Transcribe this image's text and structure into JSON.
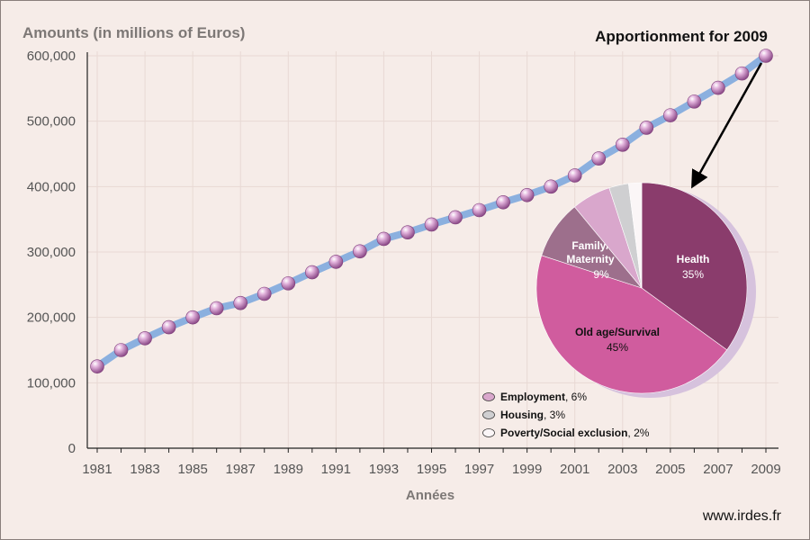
{
  "chart_data": [
    {
      "type": "line",
      "title": "",
      "ylabel": "Amounts (in millions of Euros)",
      "xlabel": "Années",
      "ylim": [
        0,
        600000
      ],
      "yticks": [
        0,
        100000,
        200000,
        300000,
        400000,
        500000,
        600000
      ],
      "ytick_labels": [
        "0",
        "100,000",
        "200,000",
        "300,000",
        "400,000",
        "500,000",
        "600,000"
      ],
      "xticks": [
        "1981",
        "1983",
        "1985",
        "1987",
        "1989",
        "1991",
        "1993",
        "1995",
        "1997",
        "1999",
        "2001",
        "2003",
        "2005",
        "2007",
        "2009"
      ],
      "x": [
        1981,
        1982,
        1983,
        1984,
        1985,
        1986,
        1987,
        1988,
        1989,
        1990,
        1991,
        1992,
        1993,
        1994,
        1995,
        1996,
        1997,
        1998,
        1999,
        2000,
        2001,
        2002,
        2003,
        2004,
        2005,
        2006,
        2007,
        2008,
        2009
      ],
      "series": [
        {
          "values": [
            125000,
            150000,
            168000,
            185000,
            200000,
            214000,
            222000,
            236000,
            252000,
            269000,
            285000,
            301000,
            320000,
            330000,
            342000,
            353000,
            364000,
            376000,
            387000,
            400000,
            417000,
            443000,
            464000,
            490000,
            509000,
            530000,
            551000,
            573000,
            600000
          ]
        }
      ],
      "grid": true,
      "line_color": "#8bb0df",
      "marker_color": "#b877b6"
    },
    {
      "type": "pie",
      "title": "Apportionment for 2009",
      "slices": [
        {
          "name": "Health",
          "value": 35,
          "label": "35%",
          "color": "#8a3c6c"
        },
        {
          "name": "Old age/Survival",
          "value": 45,
          "label": "45%",
          "color": "#d05c9e"
        },
        {
          "name": "Family/\nMaternity",
          "value": 9,
          "label": "9%",
          "color": "#9d6f8c"
        },
        {
          "name": "Employment",
          "value": 6,
          "label": "6%",
          "color": "#d9a7cc"
        },
        {
          "name": "Housing",
          "value": 3,
          "label": "3%",
          "color": "#cfcfd1"
        },
        {
          "name": "Poverty/Social exclusion",
          "value": 2,
          "label": "2%",
          "color": "#fbf6f7"
        }
      ],
      "legend": [
        {
          "name": "Employment",
          "suffix": ", 6%",
          "color": "#d9a7cc"
        },
        {
          "name": "Housing",
          "suffix": ", 3%",
          "color": "#cfcfd1"
        },
        {
          "name": "Poverty/Social exclusion",
          "suffix": ", 2%",
          "color": "#fbf6f7"
        }
      ],
      "legend_position": "bottom-left of pie"
    }
  ],
  "source": "www.irdes.fr",
  "colors": {
    "background": "#f6ece8",
    "grid": "#e8d9d4",
    "arrow": "#000000"
  }
}
